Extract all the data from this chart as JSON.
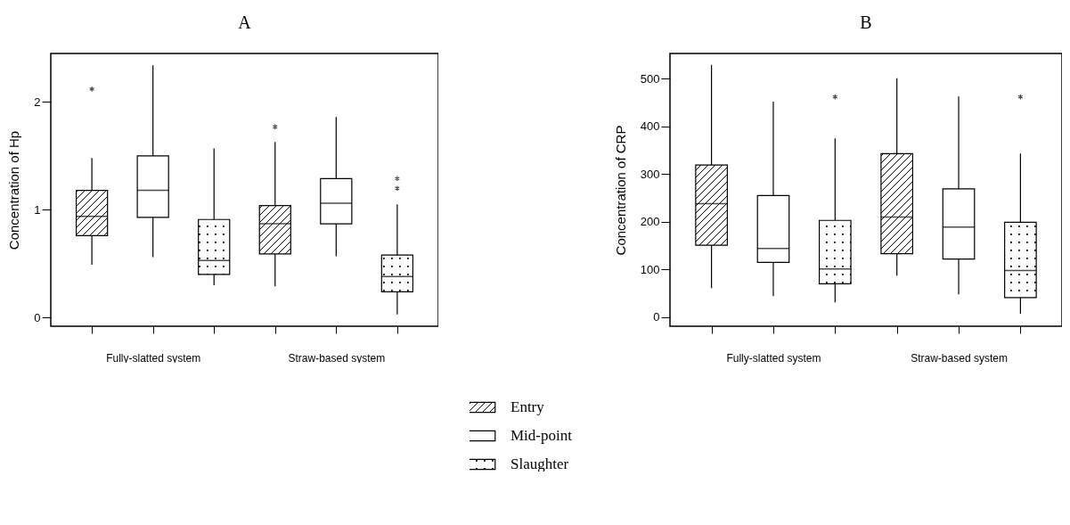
{
  "chart_data": [
    {
      "type": "box",
      "title": "A",
      "ylabel": "Concentration of Hp",
      "categories": [
        "Fully-slatted system",
        "Straw-based system"
      ],
      "ylim": [
        -0.08,
        2.45
      ],
      "yticks": [
        0,
        1,
        2
      ],
      "series": [
        {
          "color": "#000000",
          "boxes": [
            {
              "low": 0.49,
              "q1": 0.76,
              "median": 0.94,
              "q3": 1.18,
              "high": 1.48,
              "outliers": [
                2.12
              ]
            },
            {
              "low": 0.29,
              "q1": 0.59,
              "median": 0.87,
              "q3": 1.04,
              "high": 1.63,
              "outliers": [
                1.77
              ]
            }
          ]
        },
        {
          "color": "#ffffff",
          "boxes": [
            {
              "low": 0.56,
              "q1": 0.93,
              "median": 1.18,
              "q3": 1.5,
              "high": 2.34
            },
            {
              "low": 0.57,
              "q1": 0.87,
              "median": 1.06,
              "q3": 1.29,
              "high": 1.86
            }
          ]
        },
        {
          "color": "#000000",
          "boxes": [
            {
              "low": 0.3,
              "q1": 0.4,
              "median": 0.53,
              "q3": 0.91,
              "high": 1.57
            },
            {
              "low": 0.03,
              "q1": 0.24,
              "median": 0.38,
              "q3": 0.58,
              "high": 1.05,
              "outliers": [
                1.29,
                1.2
              ]
            }
          ]
        }
      ]
    },
    {
      "type": "box",
      "title": "B",
      "ylabel": "Concentration of CRP",
      "categories": [
        "Fully-slatted system",
        "Straw-based system"
      ],
      "ylim": [
        -19,
        553
      ],
      "yticks": [
        0,
        100,
        200,
        300,
        400,
        500
      ],
      "legend": "bottom",
      "series": [
        {
          "name": "Entry",
          "color": "#000000",
          "boxes": [
            {
              "low": 61,
              "q1": 151,
              "median": 238,
              "q3": 319,
              "high": 529
            },
            {
              "low": 87,
              "q1": 133,
              "median": 210,
              "q3": 343,
              "high": 501
            }
          ]
        },
        {
          "name": "Mid-point",
          "color": "#ffffff",
          "boxes": [
            {
              "low": 44,
              "q1": 115,
              "median": 144,
              "q3": 255,
              "high": 452
            },
            {
              "low": 48,
              "q1": 122,
              "median": 189,
              "q3": 269,
              "high": 463
            }
          ]
        },
        {
          "name": "Slaughter",
          "color": "#000000",
          "boxes": [
            {
              "low": 31,
              "q1": 70,
              "median": 101,
              "q3": 203,
              "high": 375,
              "outliers": [
                462
              ]
            },
            {
              "low": 7,
              "q1": 41,
              "median": 98,
              "q3": 199,
              "high": 343,
              "outliers": [
                462
              ]
            }
          ]
        }
      ]
    }
  ]
}
